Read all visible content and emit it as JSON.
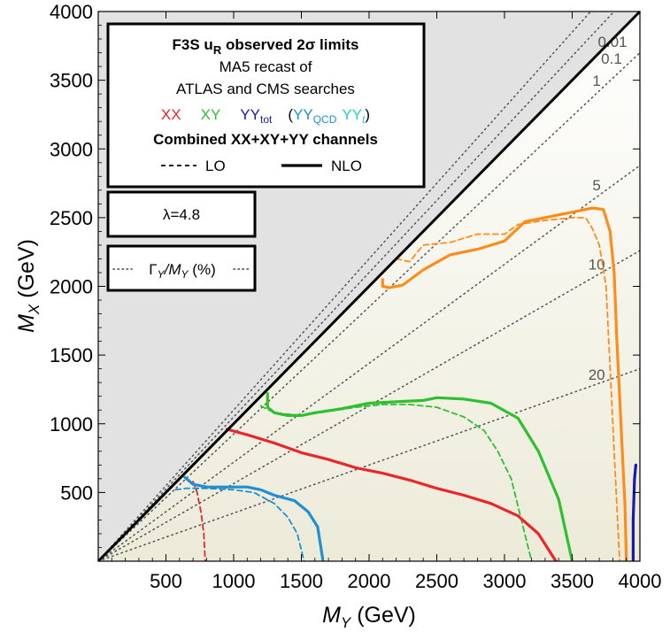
{
  "chart_data": {
    "type": "line",
    "xlabel_var": "M",
    "xlabel_sub": "Y",
    "xlabel_unit": " (GeV)",
    "ylabel_var": "M",
    "ylabel_sub": "X",
    "ylabel_unit": " (GeV)",
    "xlim": [
      0,
      4000
    ],
    "ylim": [
      0,
      4000
    ],
    "xticks": [
      500,
      1000,
      1500,
      2000,
      2500,
      3000,
      3500,
      4000
    ],
    "yticks": [
      500,
      1000,
      1500,
      2000,
      2500,
      3000,
      3500,
      4000
    ],
    "width_contours": [
      {
        "label": "0.01",
        "slope": 1.1
      },
      {
        "label": "0.1",
        "slope": 1.05
      },
      {
        "label": "1",
        "slope": 0.925
      },
      {
        "label": "5",
        "slope": 0.72
      },
      {
        "label": "10",
        "slope": 0.565
      },
      {
        "label": "20",
        "slope": 0.35
      }
    ],
    "legend": {
      "title_prefix": "F3S u",
      "title_sub": "R",
      "title_suffix": " observed 2σ limits",
      "line2": "MA5 recast of",
      "line3": "ATLAS and CMS searches",
      "xx": "XX",
      "xy": "XY",
      "yytot": "YY",
      "yytot_sub": "tot",
      "open_paren": "(",
      "yyqcd": "YY",
      "yyqcd_sub": "QCD",
      "yyt": "YY",
      "yyt_sub": "t",
      "close_paren": ")",
      "combined": "Combined XX+XY+YY channels",
      "lo": "LO",
      "nlo": "NLO"
    },
    "lambda_label": "λ=4.8",
    "width_legend": {
      "gamma": "Γ",
      "sub1": "Y",
      "slash": "/M",
      "sub2": "Y",
      "unit": " (%)"
    },
    "colors": {
      "combined": "#ff8c1a",
      "xx": "#e8262b",
      "xy": "#2ec02e",
      "yytot": "#1a1aaa",
      "yyqcd": "#1f8fd0",
      "yyt": "#22d0d0"
    },
    "series": [
      {
        "key": "xy",
        "color": "#2ec02e",
        "style": "solid",
        "points": [
          [
            1250,
            1220
          ],
          [
            1250,
            1120
          ],
          [
            1300,
            1080
          ],
          [
            1400,
            1060
          ],
          [
            1500,
            1060
          ],
          [
            1600,
            1080
          ],
          [
            1800,
            1110
          ],
          [
            2000,
            1150
          ],
          [
            2200,
            1160
          ],
          [
            2400,
            1170
          ],
          [
            2500,
            1190
          ],
          [
            2700,
            1180
          ],
          [
            2900,
            1150
          ],
          [
            3100,
            1040
          ],
          [
            3250,
            800
          ],
          [
            3400,
            450
          ],
          [
            3500,
            0
          ]
        ]
      },
      {
        "key": "xy",
        "color": "#2ec02e",
        "style": "dash",
        "points": [
          [
            1200,
            1130
          ],
          [
            1300,
            1080
          ],
          [
            1500,
            1060
          ],
          [
            1700,
            1090
          ],
          [
            1900,
            1120
          ],
          [
            2100,
            1140
          ],
          [
            2300,
            1140
          ],
          [
            2500,
            1120
          ],
          [
            2700,
            1050
          ],
          [
            2850,
            950
          ],
          [
            2950,
            800
          ],
          [
            3050,
            600
          ],
          [
            3200,
            0
          ]
        ]
      },
      {
        "key": "xx",
        "color": "#e8262b",
        "style": "solid",
        "points": [
          [
            950,
            960
          ],
          [
            1100,
            920
          ],
          [
            1300,
            860
          ],
          [
            1500,
            790
          ],
          [
            1700,
            740
          ],
          [
            1900,
            680
          ],
          [
            2100,
            640
          ],
          [
            2300,
            590
          ],
          [
            2500,
            530
          ],
          [
            2700,
            480
          ],
          [
            2900,
            420
          ],
          [
            3100,
            330
          ],
          [
            3250,
            200
          ],
          [
            3380,
            0
          ]
        ]
      },
      {
        "key": "xx",
        "color": "#e8262b",
        "style": "dash",
        "points": [
          [
            700,
            580
          ],
          [
            730,
            500
          ],
          [
            760,
            350
          ],
          [
            780,
            200
          ],
          [
            790,
            0
          ]
        ]
      },
      {
        "key": "yyqcd",
        "color": "#1f8fd0",
        "style": "solid",
        "points": [
          [
            640,
            610
          ],
          [
            700,
            560
          ],
          [
            800,
            540
          ],
          [
            900,
            540
          ],
          [
            1000,
            540
          ],
          [
            1100,
            540
          ],
          [
            1200,
            520
          ],
          [
            1300,
            480
          ],
          [
            1450,
            440
          ],
          [
            1550,
            360
          ],
          [
            1620,
            250
          ],
          [
            1660,
            0
          ]
        ]
      },
      {
        "key": "yyqcd",
        "color": "#1f8fd0",
        "style": "dash",
        "points": [
          [
            570,
            520
          ],
          [
            650,
            530
          ],
          [
            800,
            530
          ],
          [
            1000,
            520
          ],
          [
            1150,
            500
          ],
          [
            1300,
            420
          ],
          [
            1400,
            320
          ],
          [
            1470,
            200
          ],
          [
            1520,
            0
          ]
        ]
      },
      {
        "key": "combined",
        "color": "#ff8c1a",
        "style": "solid",
        "points": [
          [
            2100,
            2050
          ],
          [
            2100,
            2000
          ],
          [
            2150,
            1990
          ],
          [
            2250,
            2010
          ],
          [
            2400,
            2120
          ],
          [
            2600,
            2230
          ],
          [
            2800,
            2270
          ],
          [
            3000,
            2330
          ],
          [
            3150,
            2470
          ],
          [
            3350,
            2510
          ],
          [
            3500,
            2540
          ],
          [
            3650,
            2570
          ],
          [
            3730,
            2560
          ],
          [
            3780,
            2400
          ],
          [
            3810,
            2100
          ],
          [
            3830,
            1600
          ],
          [
            3850,
            1200
          ],
          [
            3870,
            800
          ],
          [
            3890,
            400
          ],
          [
            3900,
            0
          ]
        ]
      },
      {
        "key": "combined",
        "color": "#ff8c1a",
        "style": "dash",
        "points": [
          [
            2200,
            2200
          ],
          [
            2300,
            2180
          ],
          [
            2400,
            2300
          ],
          [
            2600,
            2320
          ],
          [
            2800,
            2380
          ],
          [
            3000,
            2380
          ],
          [
            3100,
            2450
          ],
          [
            3300,
            2480
          ],
          [
            3500,
            2500
          ],
          [
            3600,
            2500
          ],
          [
            3650,
            2420
          ],
          [
            3700,
            2300
          ],
          [
            3750,
            2000
          ],
          [
            3770,
            1600
          ],
          [
            3790,
            1200
          ],
          [
            3810,
            800
          ],
          [
            3830,
            400
          ],
          [
            3850,
            0
          ]
        ]
      },
      {
        "key": "yytot",
        "color": "#1a1aaa",
        "style": "solid",
        "points": [
          [
            3950,
            0
          ],
          [
            3950,
            300
          ],
          [
            3960,
            600
          ],
          [
            3970,
            700
          ]
        ]
      }
    ]
  }
}
